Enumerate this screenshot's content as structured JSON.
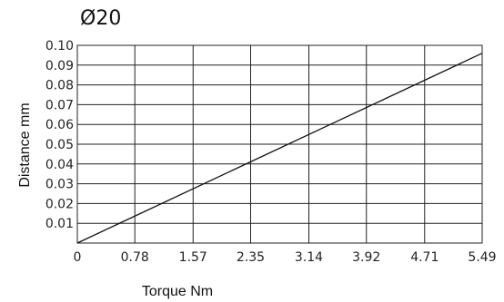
{
  "chart_data": {
    "type": "line",
    "title": "Ø20",
    "xlabel": "Torque Nm",
    "ylabel": "Distance mm",
    "x_ticks": [
      "0",
      "0.78",
      "1.57",
      "2.35",
      "3.14",
      "3.92",
      "4.71",
      "5.49"
    ],
    "y_ticks": [
      "0.01",
      "0.02",
      "0.03",
      "0.04",
      "0.05",
      "0.06",
      "0.07",
      "0.08",
      "0.09",
      "0.10"
    ],
    "xlim": [
      0,
      5.49
    ],
    "ylim": [
      0,
      0.1
    ],
    "grid": true,
    "series": [
      {
        "x": [
          0,
          5.49
        ],
        "y": [
          0.0,
          0.096
        ]
      }
    ],
    "colors": {
      "line": "#111111",
      "grid": "#222222",
      "text": "#222222"
    }
  }
}
